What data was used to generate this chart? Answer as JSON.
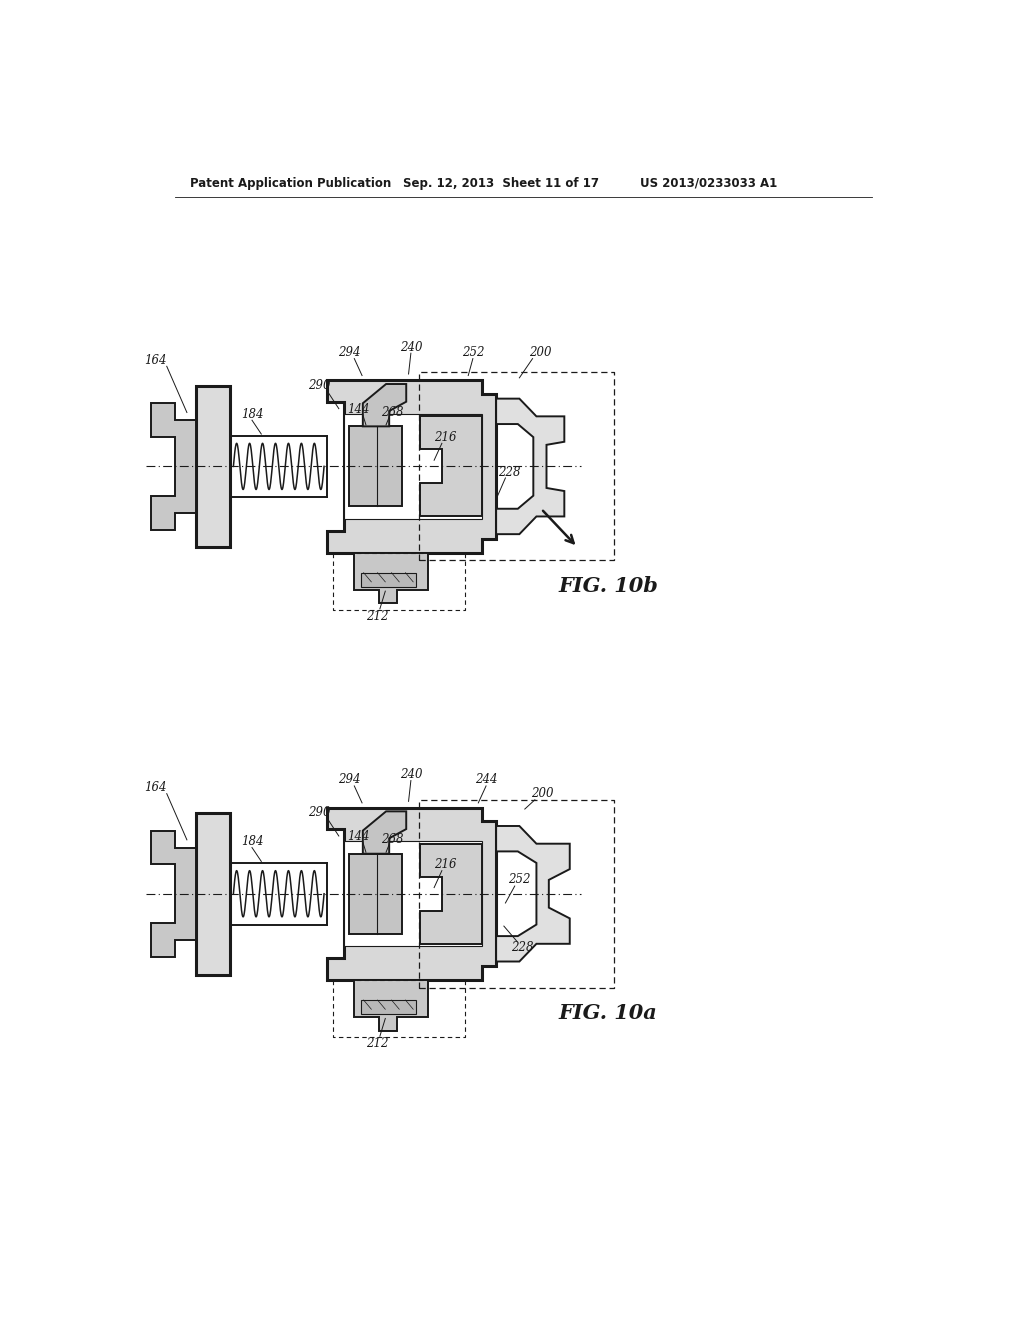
{
  "background_color": "#ffffff",
  "line_color": "#1a1a1a",
  "header_text": "Patent Application Publication",
  "header_date": "Sep. 12, 2013  Sheet 11 of 17",
  "header_patent": "US 2013/0233033 A1",
  "fig_top_label": "FIG. 10b",
  "fig_bottom_label": "FIG. 10a"
}
